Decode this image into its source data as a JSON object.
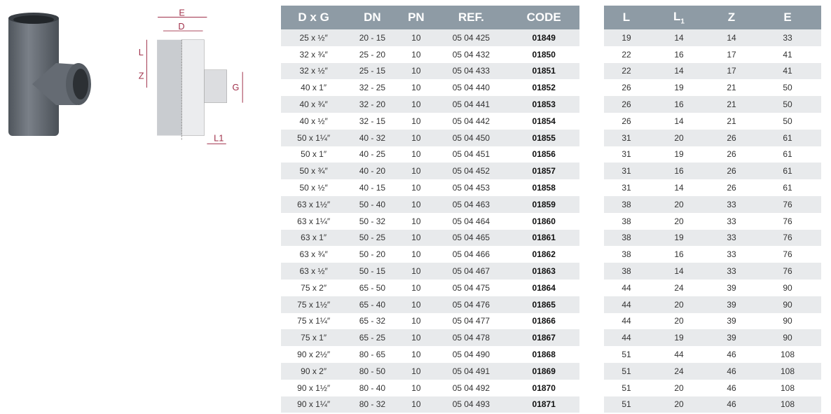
{
  "diagram": {
    "labels": {
      "E": "E",
      "D": "D",
      "L": "L",
      "Z": "Z",
      "G": "G",
      "L1": "L1"
    },
    "accent": "#a0304a"
  },
  "colors": {
    "header": "#8e9ba5",
    "row_alt": "#e8eaec",
    "pipe": "#5d636b"
  },
  "table_main": {
    "headers": [
      "D x G",
      "DN",
      "PN",
      "REF.",
      "CODE"
    ],
    "rows": [
      [
        "25 x ½″",
        "20 - 15",
        "10",
        "05 04 425",
        "01849"
      ],
      [
        "32 x ¾″",
        "25 - 20",
        "10",
        "05 04 432",
        "01850"
      ],
      [
        "32 x ½″",
        "25 - 15",
        "10",
        "05 04 433",
        "01851"
      ],
      [
        "40 x 1″",
        "32 - 25",
        "10",
        "05 04 440",
        "01852"
      ],
      [
        "40 x ¾″",
        "32 - 20",
        "10",
        "05 04 441",
        "01853"
      ],
      [
        "40 x ½″",
        "32 - 15",
        "10",
        "05 04 442",
        "01854"
      ],
      [
        "50 x 1¼″",
        "40 - 32",
        "10",
        "05 04 450",
        "01855"
      ],
      [
        "50 x 1″",
        "40 - 25",
        "10",
        "05 04 451",
        "01856"
      ],
      [
        "50 x ¾″",
        "40 - 20",
        "10",
        "05 04 452",
        "01857"
      ],
      [
        "50 x ½″",
        "40 - 15",
        "10",
        "05 04 453",
        "01858"
      ],
      [
        "63 x 1½″",
        "50 - 40",
        "10",
        "05 04 463",
        "01859"
      ],
      [
        "63 x 1¼″",
        "50 - 32",
        "10",
        "05 04 464",
        "01860"
      ],
      [
        "63 x 1″",
        "50 - 25",
        "10",
        "05 04 465",
        "01861"
      ],
      [
        "63 x ¾″",
        "50 - 20",
        "10",
        "05 04 466",
        "01862"
      ],
      [
        "63 x ½″",
        "50 - 15",
        "10",
        "05 04 467",
        "01863"
      ],
      [
        "75 x 2″",
        "65 - 50",
        "10",
        "05 04 475",
        "01864"
      ],
      [
        "75 x 1½″",
        "65 - 40",
        "10",
        "05 04 476",
        "01865"
      ],
      [
        "75 x 1¼″",
        "65 - 32",
        "10",
        "05 04 477",
        "01866"
      ],
      [
        "75 x 1″",
        "65 - 25",
        "10",
        "05 04 478",
        "01867"
      ],
      [
        "90 x 2½″",
        "80 - 65",
        "10",
        "05 04 490",
        "01868"
      ],
      [
        "90 x 2″",
        "80 - 50",
        "10",
        "05 04 491",
        "01869"
      ],
      [
        "90 x 1½″",
        "80 - 40",
        "10",
        "05 04 492",
        "01870"
      ],
      [
        "90 x 1¼″",
        "80 - 32",
        "10",
        "05 04 493",
        "01871"
      ]
    ]
  },
  "table_dims": {
    "headers": [
      "L",
      "L",
      "Z",
      "E"
    ],
    "header_sub": "1",
    "rows": [
      [
        "19",
        "14",
        "14",
        "33"
      ],
      [
        "22",
        "16",
        "17",
        "41"
      ],
      [
        "22",
        "14",
        "17",
        "41"
      ],
      [
        "26",
        "19",
        "21",
        "50"
      ],
      [
        "26",
        "16",
        "21",
        "50"
      ],
      [
        "26",
        "14",
        "21",
        "50"
      ],
      [
        "31",
        "20",
        "26",
        "61"
      ],
      [
        "31",
        "19",
        "26",
        "61"
      ],
      [
        "31",
        "16",
        "26",
        "61"
      ],
      [
        "31",
        "14",
        "26",
        "61"
      ],
      [
        "38",
        "20",
        "33",
        "76"
      ],
      [
        "38",
        "20",
        "33",
        "76"
      ],
      [
        "38",
        "19",
        "33",
        "76"
      ],
      [
        "38",
        "16",
        "33",
        "76"
      ],
      [
        "38",
        "14",
        "33",
        "76"
      ],
      [
        "44",
        "24",
        "39",
        "90"
      ],
      [
        "44",
        "20",
        "39",
        "90"
      ],
      [
        "44",
        "20",
        "39",
        "90"
      ],
      [
        "44",
        "19",
        "39",
        "90"
      ],
      [
        "51",
        "44",
        "46",
        "108"
      ],
      [
        "51",
        "24",
        "46",
        "108"
      ],
      [
        "51",
        "20",
        "46",
        "108"
      ],
      [
        "51",
        "20",
        "46",
        "108"
      ]
    ]
  }
}
